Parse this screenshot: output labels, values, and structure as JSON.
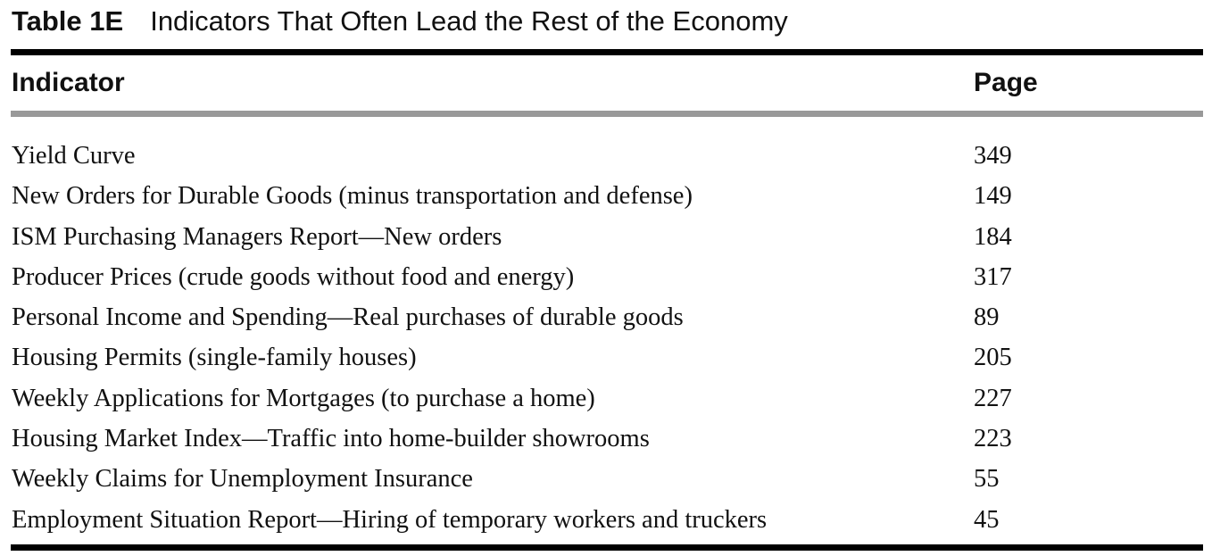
{
  "caption": {
    "label": "Table 1E",
    "title": "Indicators That Often Lead the Rest of the Economy"
  },
  "table": {
    "headers": {
      "indicator": "Indicator",
      "page": "Page"
    },
    "rows": [
      {
        "indicator": "Yield Curve",
        "page": "349"
      },
      {
        "indicator": "New Orders for Durable Goods (minus transportation and defense)",
        "page": "149"
      },
      {
        "indicator": "ISM Purchasing Managers Report—New orders",
        "page": "184"
      },
      {
        "indicator": "Producer Prices (crude goods without food and energy)",
        "page": "317"
      },
      {
        "indicator": "Personal Income and Spending—Real purchases of durable goods",
        "page": "89"
      },
      {
        "indicator": "Housing Permits (single-family houses)",
        "page": "205"
      },
      {
        "indicator": "Weekly Applications for Mortgages (to purchase a home)",
        "page": "227"
      },
      {
        "indicator": "Housing Market Index—Traffic into home-builder showrooms",
        "page": "223"
      },
      {
        "indicator": "Weekly Claims for Unemployment Insurance",
        "page": "55"
      },
      {
        "indicator": "Employment Situation Report—Hiring of temporary workers and truckers",
        "page": "45"
      }
    ]
  }
}
